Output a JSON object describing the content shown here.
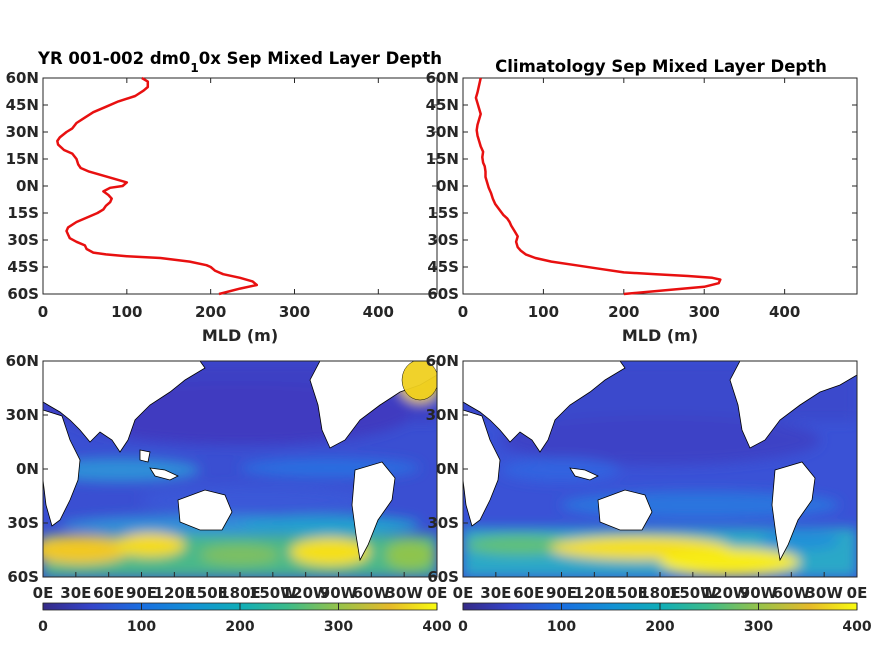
{
  "chart_data": [
    {
      "type": "line",
      "id": "profile-model",
      "title_main": "YR 001-002 dm0",
      "title_sub": "1",
      "title_rest": "0x Sep Mixed Layer Depth",
      "xlabel": "MLD (m)",
      "ylabel": "",
      "xlim": [
        0,
        470
      ],
      "ylim": [
        -60,
        60
      ],
      "xticks": [
        0,
        100,
        200,
        300,
        400
      ],
      "yticks": [
        60,
        45,
        30,
        15,
        0,
        -15,
        -30,
        -45,
        -60
      ],
      "yticklabels": [
        "60N",
        "45N",
        "30N",
        "15N",
        "0N",
        "15S",
        "30S",
        "45S",
        "60S"
      ],
      "line_color": "#e81010",
      "series": [
        {
          "x": [
            210,
            235,
            255,
            250,
            235,
            215,
            205,
            200,
            195,
            175,
            140,
            100,
            75,
            60,
            52,
            50,
            40,
            32,
            30,
            28,
            30,
            40,
            55,
            65,
            72,
            75,
            80,
            82,
            78,
            72,
            80,
            95,
            100,
            85,
            70,
            55,
            45,
            42,
            40,
            35,
            25,
            18,
            17,
            20,
            28,
            35,
            40,
            50,
            60,
            75,
            90,
            110,
            120,
            125,
            125,
            118
          ],
          "y": [
            -60,
            -57,
            -55,
            -53,
            -51,
            -49,
            -47,
            -45,
            -44,
            -42,
            -40,
            -39,
            -38,
            -37,
            -35,
            -33,
            -31,
            -29,
            -27,
            -25,
            -23,
            -20,
            -17,
            -15,
            -13,
            -11,
            -9,
            -7,
            -5,
            -3,
            -1,
            0,
            2,
            4,
            6,
            8,
            10,
            12,
            15,
            18,
            20,
            23,
            25,
            27,
            30,
            32,
            35,
            38,
            41,
            44,
            47,
            50,
            53,
            55,
            58,
            60
          ]
        }
      ]
    },
    {
      "type": "line",
      "id": "profile-climatology",
      "title": "Climatology Sep Mixed Layer Depth",
      "xlabel": "MLD (m)",
      "ylabel": "",
      "xlim": [
        0,
        490
      ],
      "ylim": [
        -60,
        60
      ],
      "xticks": [
        0,
        100,
        200,
        300,
        400
      ],
      "yticks": [
        60,
        45,
        30,
        15,
        0,
        -15,
        -30,
        -45,
        -60
      ],
      "yticklabels": [
        "60N",
        "45N",
        "30N",
        "15N",
        "0N",
        "15S",
        "30S",
        "45S",
        "60S"
      ],
      "line_color": "#e81010",
      "series": [
        {
          "x": [
            200,
            250,
            300,
            318,
            320,
            310,
            280,
            240,
            200,
            170,
            140,
            110,
            90,
            78,
            72,
            68,
            66,
            68,
            64,
            60,
            58,
            55,
            50,
            45,
            40,
            37,
            35,
            32,
            30,
            28,
            28,
            27,
            25,
            24,
            25,
            22,
            20,
            18,
            17,
            18,
            20,
            22,
            20,
            18,
            16,
            18,
            20,
            22
          ],
          "y": [
            -60,
            -58,
            -56,
            -54,
            -52,
            -51,
            -50,
            -49,
            -48,
            -46,
            -44,
            -42,
            -40,
            -38,
            -36,
            -34,
            -31,
            -28,
            -25,
            -22,
            -20,
            -18,
            -16,
            -13,
            -10,
            -7,
            -4,
            -1,
            2,
            5,
            8,
            11,
            13,
            16,
            19,
            22,
            25,
            28,
            31,
            34,
            37,
            40,
            43,
            46,
            49,
            52,
            56,
            60
          ]
        }
      ]
    },
    {
      "type": "heatmap",
      "id": "map-model",
      "colormap": "parula",
      "clim": [
        0,
        400
      ],
      "xlim": [
        0,
        360
      ],
      "ylim": [
        -60,
        60
      ],
      "xticklabels": [
        "0E",
        "30E",
        "60E",
        "90E",
        "120E",
        "150E",
        "180E",
        "150W",
        "120W",
        "90W",
        "60W",
        "30W",
        "0E"
      ],
      "yticklabels": [
        "60N",
        "30N",
        "0N",
        "30S",
        "60S"
      ],
      "colorbar_ticks": [
        "0",
        "100",
        "200",
        "300",
        "400"
      ]
    },
    {
      "type": "heatmap",
      "id": "map-climatology",
      "colormap": "parula",
      "clim": [
        0,
        400
      ],
      "xlim": [
        0,
        360
      ],
      "ylim": [
        -60,
        60
      ],
      "xticklabels": [
        "0E",
        "30E",
        "60E",
        "90E",
        "120E",
        "150E",
        "180E",
        "150W",
        "120W",
        "90W",
        "60W",
        "30W",
        "0E"
      ],
      "yticklabels": [
        "60N",
        "30N",
        "0N",
        "30S",
        "60S"
      ],
      "colorbar_ticks": [
        "0",
        "100",
        "200",
        "300",
        "400"
      ]
    }
  ]
}
